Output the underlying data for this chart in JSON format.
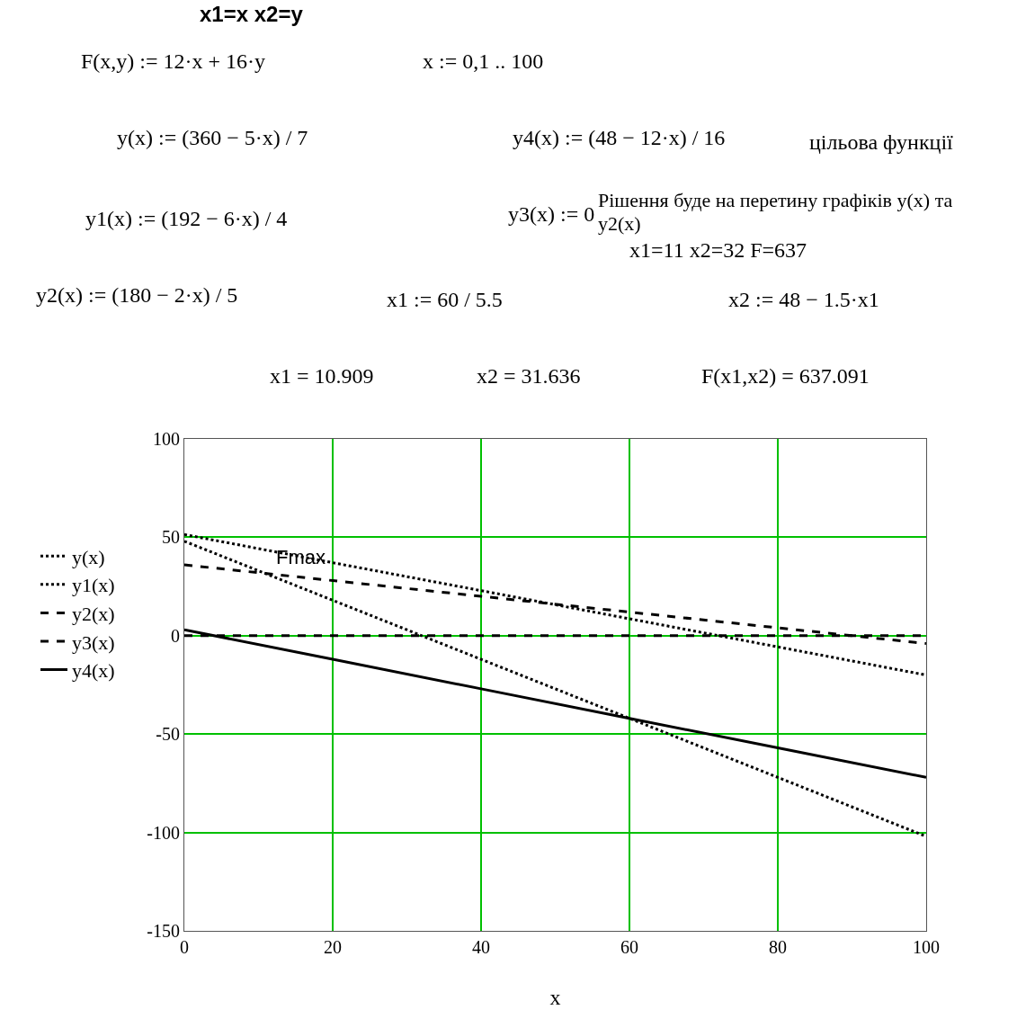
{
  "chart_data": {
    "type": "line",
    "xlabel": "x",
    "x": [
      0,
      20,
      40,
      60,
      80,
      100
    ],
    "xlim": [
      0,
      100
    ],
    "xticks": [
      0,
      20,
      40,
      60,
      80,
      100
    ],
    "ylim": [
      -150,
      100
    ],
    "yticks": [
      -150,
      -100,
      -50,
      0,
      50,
      100
    ],
    "grid": true,
    "legend": "left",
    "series": [
      {
        "name": "y(x)",
        "color": "#000000",
        "line_style": "dotted",
        "values": [
          51.4,
          37.1,
          22.9,
          8.6,
          -5.7,
          -20
        ]
      },
      {
        "name": "y1(x)",
        "color": "#000000",
        "line_style": "dotted",
        "values": [
          48,
          18,
          -12,
          -42,
          -72,
          -102
        ]
      },
      {
        "name": "y2(x)",
        "color": "#000000",
        "line_style": "dashed",
        "values": [
          36,
          28,
          20,
          12,
          4,
          -4
        ]
      },
      {
        "name": "y3(x)",
        "color": "#000000",
        "line_style": "dashed",
        "values": [
          0,
          0,
          0,
          0,
          0,
          0
        ]
      },
      {
        "name": "y4(x)",
        "color": "#000000",
        "line_style": "solid",
        "values": [
          3,
          -12,
          -27,
          -42,
          -57,
          -72
        ]
      }
    ],
    "annotations": [
      "x1=x    x2=y",
      "F(x,y) := 12·x + 16·y",
      "x := 0,1 .. 100",
      "y(x) := (360 − 5·x) / 7",
      "y4(x) := (48 − 12·x) / 16",
      "цільова функції",
      "y1(x) := (192 − 6·x) / 4",
      "y3(x) := 0",
      "Рішення буде на перетину графіків y(x) та y2(x)",
      "x1=11    x2=32    F=637",
      "y2(x) := (180 − 2·x) / 5",
      "x1 := 60 / 5.5",
      "x2 := 48 − 1.5·x1",
      "x1 = 10.909",
      "x2 = 31.636",
      "F(x1,x2) = 637.091",
      {
        "text": "Fmax",
        "x": 10.909,
        "y": 31.636
      }
    ]
  }
}
